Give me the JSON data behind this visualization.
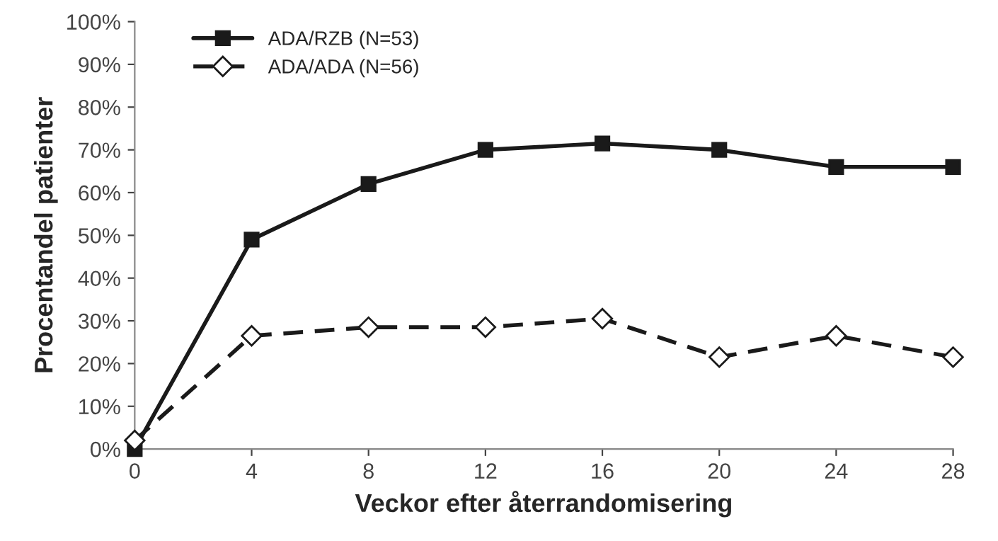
{
  "chart_data": {
    "type": "line",
    "xlabel": "Veckor efter återrandomisering",
    "ylabel": "Procentandel patienter",
    "x": [
      0,
      4,
      8,
      12,
      16,
      20,
      24,
      28
    ],
    "series": [
      {
        "name": "ADA/RZB (N=53)",
        "color": "#1a1a1a",
        "marker": "square",
        "line_style": "solid",
        "values": [
          0,
          49,
          62,
          70,
          71.5,
          70,
          66,
          66
        ]
      },
      {
        "name": "ADA/ADA (N=56)",
        "color": "#1a1a1a",
        "marker": "diamond",
        "line_style": "dashed",
        "values": [
          2,
          26.5,
          28.5,
          28.5,
          30.5,
          21.5,
          26.5,
          21.5
        ]
      }
    ],
    "xlim": [
      0,
      28
    ],
    "xticks": [
      0,
      4,
      8,
      12,
      16,
      20,
      24,
      28
    ],
    "ylim": [
      0,
      100
    ],
    "yticks": [
      {
        "value": 0,
        "label": "0%"
      },
      {
        "value": 10,
        "label": "10%"
      },
      {
        "value": 20,
        "label": "20%"
      },
      {
        "value": 30,
        "label": "30%"
      },
      {
        "value": 40,
        "label": "40%"
      },
      {
        "value": 50,
        "label": "50%"
      },
      {
        "value": 60,
        "label": "60%"
      },
      {
        "value": 70,
        "label": "70%"
      },
      {
        "value": 80,
        "label": "80%"
      },
      {
        "value": 90,
        "label": "90%"
      },
      {
        "value": 100,
        "label": "100%"
      }
    ],
    "grid": false,
    "legend": "top left"
  }
}
